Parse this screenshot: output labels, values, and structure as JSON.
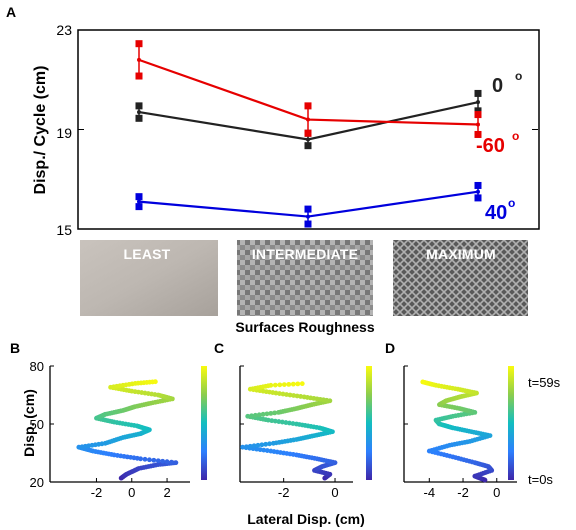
{
  "panels": {
    "a": "A",
    "b": "B",
    "c": "C",
    "d": "D"
  },
  "chart_data": [
    {
      "type": "line",
      "ylabel": "Disp./ Cycle (cm)",
      "ylim": [
        15,
        23
      ],
      "yticks": [
        "23",
        "19",
        "15"
      ],
      "categories": [
        "LEAST",
        "INTERMEDIATE",
        "MAXIMUM"
      ],
      "xlabel": "Surfaces  Roughness",
      "series": [
        {
          "name": "0",
          "name_suffix": "o",
          "color": "#222222",
          "values": [
            19.7,
            18.6,
            20.1
          ],
          "err": [
            0.25,
            0.25,
            0.35
          ]
        },
        {
          "name": "-60",
          "name_suffix": "o",
          "color": "#e60000",
          "values": [
            21.8,
            19.4,
            19.2
          ],
          "err": [
            0.65,
            0.55,
            0.4
          ]
        },
        {
          "name": "40",
          "name_suffix": "o",
          "color": "#0000dd",
          "values": [
            16.1,
            15.5,
            16.5
          ],
          "err": [
            0.2,
            0.3,
            0.25
          ]
        }
      ]
    },
    {
      "type": "scatter",
      "panel": "B",
      "ylabel": "Disp.  (cm)",
      "ylim": [
        20,
        80
      ],
      "yticks": [
        "80",
        "50",
        "20"
      ],
      "xlim": [
        -3.5,
        3.3
      ],
      "xticks": [
        "-2",
        "0",
        "2"
      ],
      "colormap": "parula",
      "points": [
        [
          -0.6,
          22
        ],
        [
          -0.3,
          24
        ],
        [
          0.4,
          27
        ],
        [
          1.5,
          29
        ],
        [
          2.5,
          30
        ],
        [
          0.5,
          32
        ],
        [
          -1,
          34
        ],
        [
          -2.2,
          36
        ],
        [
          -3,
          38
        ],
        [
          -1.5,
          40
        ],
        [
          -0.5,
          43
        ],
        [
          0.5,
          45
        ],
        [
          1,
          47
        ],
        [
          0.3,
          49
        ],
        [
          -1,
          51
        ],
        [
          -2,
          53
        ],
        [
          -1.5,
          55
        ],
        [
          -0.5,
          57
        ],
        [
          0.2,
          59
        ],
        [
          1.2,
          61
        ],
        [
          2.3,
          63
        ],
        [
          1.5,
          65
        ],
        [
          0,
          67
        ],
        [
          -1.2,
          69
        ],
        [
          0.2,
          71
        ],
        [
          1.5,
          72
        ]
      ]
    },
    {
      "type": "scatter",
      "panel": "C",
      "ylim": [
        20,
        80
      ],
      "xlim": [
        -3.7,
        0.7
      ],
      "xticks": [
        "-2",
        "0"
      ],
      "colormap": "parula",
      "points": [
        [
          -0.4,
          22
        ],
        [
          -0.2,
          24
        ],
        [
          -0.8,
          26
        ],
        [
          -0.5,
          28
        ],
        [
          0,
          30
        ],
        [
          -0.7,
          32
        ],
        [
          -1.5,
          34
        ],
        [
          -2.5,
          36
        ],
        [
          -3.6,
          38
        ],
        [
          -2.4,
          40
        ],
        [
          -1.5,
          42
        ],
        [
          -0.8,
          44
        ],
        [
          -0.1,
          46
        ],
        [
          -0.6,
          48
        ],
        [
          -1.5,
          50
        ],
        [
          -2.6,
          52
        ],
        [
          -3.4,
          54
        ],
        [
          -2.2,
          56
        ],
        [
          -1.5,
          58
        ],
        [
          -0.9,
          60
        ],
        [
          -0.2,
          62
        ],
        [
          -1.2,
          64
        ],
        [
          -2.3,
          66
        ],
        [
          -3.3,
          68
        ],
        [
          -2.5,
          70
        ],
        [
          -1.1,
          71
        ]
      ]
    },
    {
      "type": "scatter",
      "panel": "D",
      "ylim": [
        20,
        80
      ],
      "xlim": [
        -5.5,
        1.2
      ],
      "xticks": [
        "-4",
        "-2",
        "0"
      ],
      "colormap": "parula",
      "colorbar_labels": [
        "t=59s",
        "t=0s"
      ],
      "points": [
        [
          -0.7,
          21
        ],
        [
          -1.3,
          23
        ],
        [
          -0.3,
          26
        ],
        [
          -0.5,
          28
        ],
        [
          -1.3,
          30
        ],
        [
          -2.6,
          33
        ],
        [
          -4,
          36
        ],
        [
          -2.8,
          39
        ],
        [
          -1.6,
          41
        ],
        [
          -0.4,
          44
        ],
        [
          -1.5,
          46
        ],
        [
          -2.6,
          48
        ],
        [
          -3.4,
          50
        ],
        [
          -3.6,
          52
        ],
        [
          -2.6,
          54
        ],
        [
          -1.3,
          56
        ],
        [
          -2.2,
          58
        ],
        [
          -3.4,
          60
        ],
        [
          -3,
          62
        ],
        [
          -2.2,
          64
        ],
        [
          -1.2,
          66
        ],
        [
          -2.3,
          68
        ],
        [
          -3.6,
          70
        ],
        [
          -4.5,
          72
        ]
      ]
    }
  ],
  "lateral_xlabel": "Lateral Disp. (cm)"
}
